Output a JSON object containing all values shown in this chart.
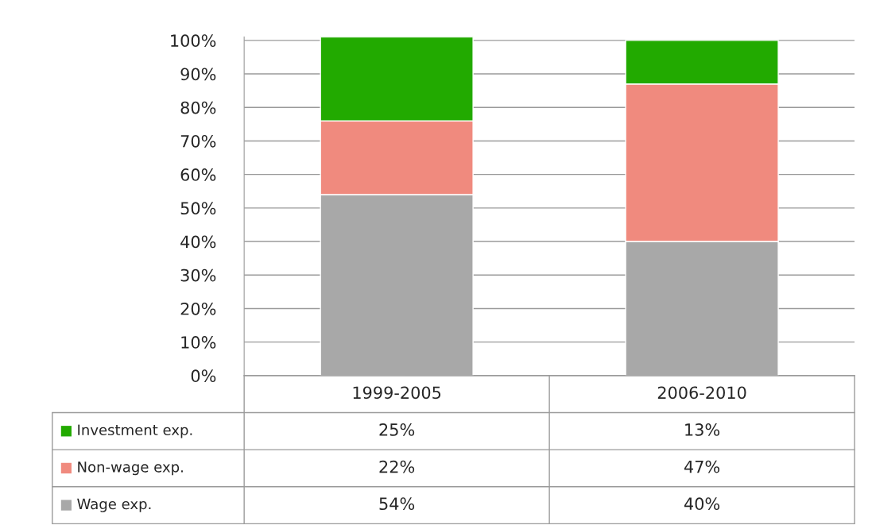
{
  "chart_data": {
    "type": "bar",
    "stacked": true,
    "categories": [
      "1999-2005",
      "2006-2010"
    ],
    "series": [
      {
        "name": "Wage exp.",
        "color": "#a8a8a8",
        "values": [
          54,
          40
        ],
        "value_labels": [
          "54%",
          "40%"
        ]
      },
      {
        "name": "Non-wage exp.",
        "color": "#f08a7e",
        "values": [
          22,
          47
        ],
        "value_labels": [
          "22%",
          "47%"
        ]
      },
      {
        "name": "Investment exp.",
        "color": "#22aa00",
        "values": [
          25,
          13
        ],
        "value_labels": [
          "25%",
          "13%"
        ]
      }
    ],
    "ylim": [
      0,
      101
    ],
    "yticks": [
      {
        "value": 0,
        "label": "0%"
      },
      {
        "value": 10,
        "label": "10%"
      },
      {
        "value": 20,
        "label": "20%"
      },
      {
        "value": 30,
        "label": "30%"
      },
      {
        "value": 40,
        "label": "40%"
      },
      {
        "value": 50,
        "label": "50%"
      },
      {
        "value": 60,
        "label": "60%"
      },
      {
        "value": 70,
        "label": "70%"
      },
      {
        "value": 80,
        "label": "80%"
      },
      {
        "value": 90,
        "label": "90%"
      },
      {
        "value": 100,
        "label": "100%"
      }
    ],
    "grid": "y",
    "legend": "bottom"
  }
}
